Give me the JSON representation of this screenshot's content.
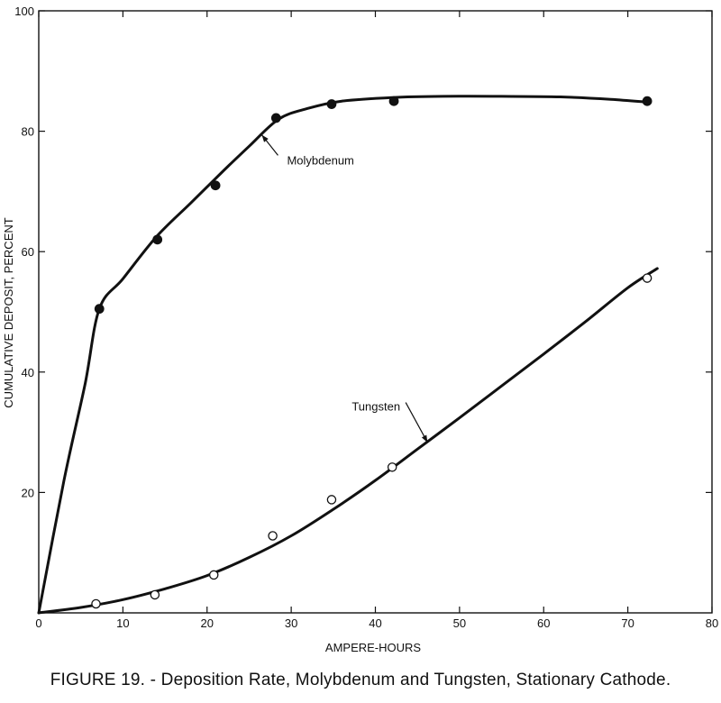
{
  "chart_data": {
    "type": "scatter",
    "title": "",
    "caption": "FIGURE 19. - Deposition Rate, Molybdenum and Tungsten, Stationary Cathode.",
    "xlabel": "AMPERE-HOURS",
    "ylabel": "CUMULATIVE DEPOSIT, PERCENT",
    "xlim": [
      0,
      80
    ],
    "ylim": [
      0,
      100
    ],
    "xticks": [
      0,
      10,
      20,
      30,
      40,
      50,
      60,
      70,
      80
    ],
    "yticks": [
      20,
      40,
      60,
      80,
      100
    ],
    "grid": false,
    "legend": "none",
    "series": [
      {
        "name": "Molybdenum",
        "marker": "filled-circle",
        "points": [
          [
            7.2,
            50.5
          ],
          [
            14.1,
            62
          ],
          [
            21,
            71
          ],
          [
            28.2,
            82.2
          ],
          [
            34.8,
            84.5
          ],
          [
            42.2,
            85
          ],
          [
            72.3,
            85
          ]
        ],
        "curve": [
          [
            0,
            0
          ],
          [
            3,
            22
          ],
          [
            5.5,
            38
          ],
          [
            7.2,
            50.5
          ],
          [
            10,
            55.5
          ],
          [
            14,
            62.5
          ],
          [
            18,
            68
          ],
          [
            22,
            73.5
          ],
          [
            25,
            77.5
          ],
          [
            28.5,
            82
          ],
          [
            32,
            83.8
          ],
          [
            36,
            85
          ],
          [
            42,
            85.6
          ],
          [
            48,
            85.8
          ],
          [
            55,
            85.8
          ],
          [
            62,
            85.7
          ],
          [
            68,
            85.3
          ],
          [
            72.5,
            84.8
          ]
        ]
      },
      {
        "name": "Tungsten",
        "marker": "open-circle",
        "points": [
          [
            6.8,
            1.5
          ],
          [
            13.8,
            3
          ],
          [
            20.8,
            6.3
          ],
          [
            27.8,
            12.8
          ],
          [
            34.8,
            18.8
          ],
          [
            42,
            24.2
          ],
          [
            72.3,
            55.6
          ]
        ],
        "curve": [
          [
            0,
            0
          ],
          [
            5,
            0.9
          ],
          [
            10,
            2.2
          ],
          [
            15,
            4
          ],
          [
            20,
            6.2
          ],
          [
            25,
            9.2
          ],
          [
            30,
            12.8
          ],
          [
            35,
            17.2
          ],
          [
            40,
            22
          ],
          [
            45,
            27.2
          ],
          [
            50,
            32.4
          ],
          [
            55,
            37.7
          ],
          [
            60,
            43
          ],
          [
            65,
            48.4
          ],
          [
            70,
            54
          ],
          [
            73.5,
            57.2
          ]
        ]
      }
    ],
    "annotations": [
      {
        "text": "Molybdenum",
        "x": 29.5,
        "y": 74.5,
        "pointer_to": [
          26.5,
          79.4
        ]
      },
      {
        "text": "Tungsten",
        "x": 37.2,
        "y": 33.6,
        "pointer_to": [
          46.2,
          28.3
        ]
      }
    ]
  }
}
